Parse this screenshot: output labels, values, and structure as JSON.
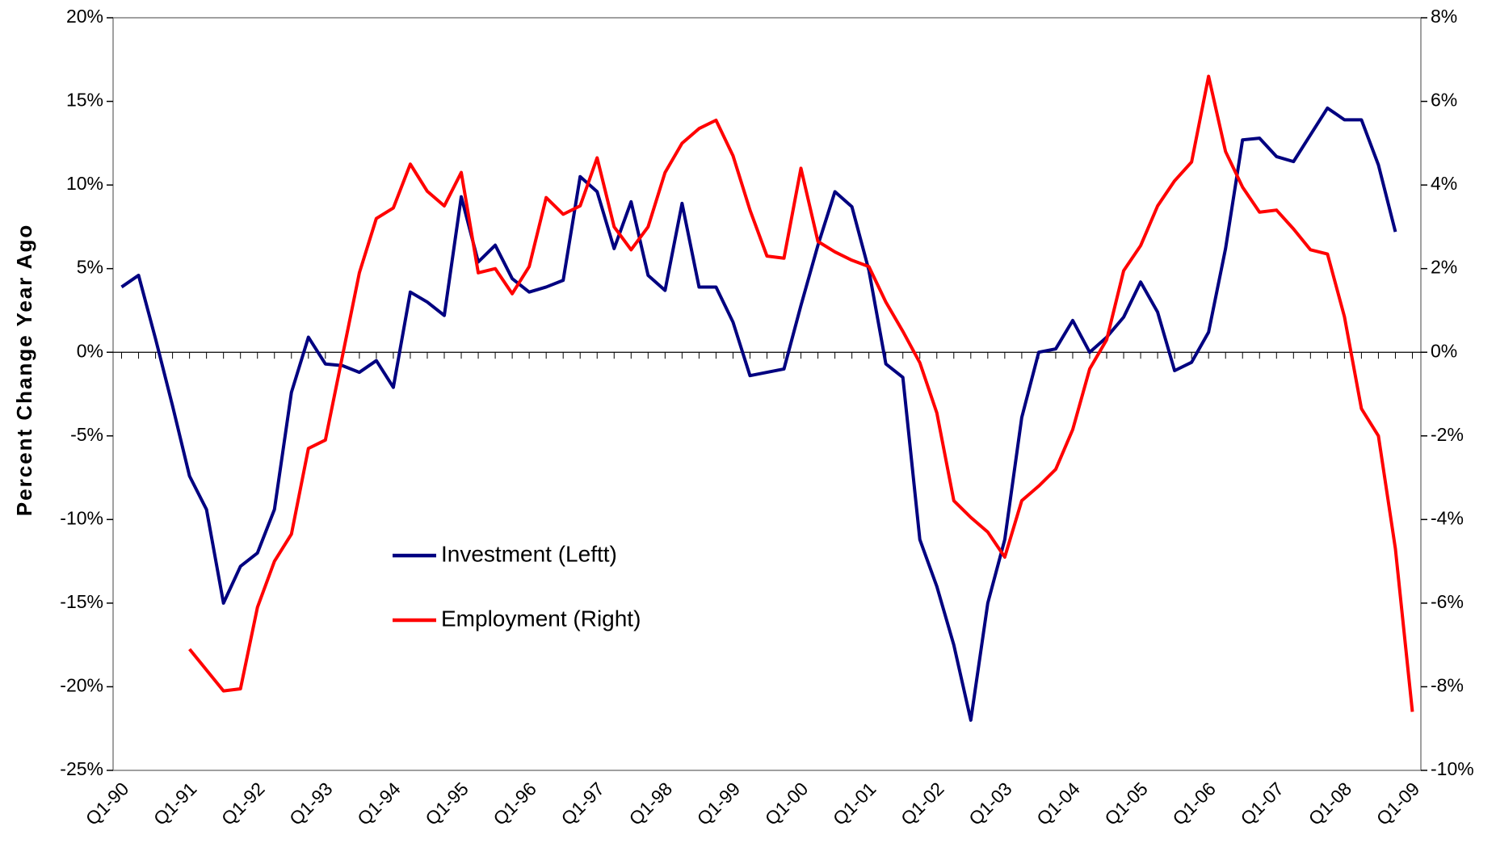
{
  "chart_data": {
    "type": "line",
    "y_label": "Percent Change Year Ago",
    "categories": [
      "Q1-90",
      null,
      null,
      null,
      "Q1-91",
      null,
      null,
      null,
      "Q1-92",
      null,
      null,
      null,
      "Q1-93",
      null,
      null,
      null,
      "Q1-94",
      null,
      null,
      null,
      "Q1-95",
      null,
      null,
      null,
      "Q1-96",
      null,
      null,
      null,
      "Q1-97",
      null,
      null,
      null,
      "Q1-98",
      null,
      null,
      null,
      "Q1-99",
      null,
      null,
      null,
      "Q1-00",
      null,
      null,
      null,
      "Q1-01",
      null,
      null,
      null,
      "Q1-02",
      null,
      null,
      null,
      "Q1-03",
      null,
      null,
      null,
      "Q1-04",
      null,
      null,
      null,
      "Q1-05",
      null,
      null,
      null,
      "Q1-06",
      null,
      null,
      null,
      "Q1-07",
      null,
      null,
      null,
      "Q1-08",
      null,
      null,
      null,
      "Q1-09"
    ],
    "series": [
      {
        "name": "Investment (Leftt)",
        "color": "#000080",
        "values": [
          3.9,
          4.6,
          0.8,
          -3.2,
          -7.4,
          -9.4,
          -15.0,
          -12.8,
          -12.0,
          -9.4,
          -2.4,
          0.9,
          -0.7,
          -0.8,
          -1.2,
          -0.5,
          -2.1,
          3.6,
          3.0,
          2.2,
          9.3,
          5.4,
          6.4,
          4.4,
          3.6,
          3.9,
          4.3,
          10.5,
          9.6,
          6.2,
          9.0,
          4.6,
          3.7,
          8.9,
          3.9,
          3.9,
          1.8,
          -1.4,
          -1.2,
          -1.0,
          2.8,
          6.4,
          9.6,
          8.7,
          4.9,
          -0.7,
          -1.5,
          -11.2,
          -14.0,
          -17.5,
          -22.0,
          -15.0,
          -11.2,
          -3.9,
          0.0,
          0.2,
          1.9,
          0.0,
          0.9,
          2.1,
          4.2,
          2.4,
          -1.1,
          -0.6,
          1.2,
          6.2,
          12.7,
          12.8,
          11.7,
          11.4,
          13.0,
          14.6,
          13.9,
          13.9,
          11.2,
          7.2,
          null
        ]
      },
      {
        "name": "Employment (Right)",
        "color": "#ff0000",
        "axis": "y2",
        "values": [
          null,
          null,
          null,
          null,
          -7.1,
          -7.6,
          -8.1,
          -8.05,
          -6.1,
          -5.0,
          -4.35,
          -2.3,
          -2.1,
          -0.1,
          1.9,
          3.2,
          3.45,
          4.5,
          3.85,
          3.5,
          4.3,
          1.9,
          2.0,
          1.4,
          2.05,
          3.7,
          3.3,
          3.5,
          4.65,
          3.0,
          2.45,
          3.0,
          4.3,
          5.0,
          5.35,
          5.55,
          4.7,
          3.4,
          2.3,
          2.25,
          4.4,
          2.65,
          2.4,
          2.2,
          2.05,
          1.2,
          0.5,
          -0.25,
          -1.45,
          -3.55,
          -3.95,
          -4.3,
          -4.9,
          -3.55,
          -3.2,
          -2.8,
          -1.85,
          -0.4,
          0.3,
          1.95,
          2.55,
          3.5,
          4.1,
          4.55,
          6.6,
          4.8,
          3.95,
          3.35,
          3.4,
          2.95,
          2.45,
          2.35,
          0.85,
          -1.35,
          -2.0,
          -4.7,
          -8.6
        ]
      }
    ],
    "ylim": [
      -25,
      20
    ],
    "yticks": [
      {
        "value": -25,
        "label": "-25%"
      },
      {
        "value": -20,
        "label": "-20%"
      },
      {
        "value": -15,
        "label": "-15%"
      },
      {
        "value": -10,
        "label": "-10%"
      },
      {
        "value": -5,
        "label": "-5%"
      },
      {
        "value": 0,
        "label": "0%"
      },
      {
        "value": 5,
        "label": "5%"
      },
      {
        "value": 10,
        "label": "10%"
      },
      {
        "value": 15,
        "label": "15%"
      },
      {
        "value": 20,
        "label": "20%"
      }
    ],
    "y2lim": [
      -10,
      8
    ],
    "y2ticks": [
      {
        "value": -10,
        "label": "-10%"
      },
      {
        "value": -8,
        "label": "-8%"
      },
      {
        "value": -6,
        "label": "-6%"
      },
      {
        "value": -4,
        "label": "-4%"
      },
      {
        "value": -2,
        "label": "-2%"
      },
      {
        "value": 0,
        "label": "0%"
      },
      {
        "value": 2,
        "label": "2%"
      },
      {
        "value": 4,
        "label": "4%"
      },
      {
        "value": 6,
        "label": "6%"
      },
      {
        "value": 8,
        "label": "8%"
      }
    ],
    "grid": false
  }
}
